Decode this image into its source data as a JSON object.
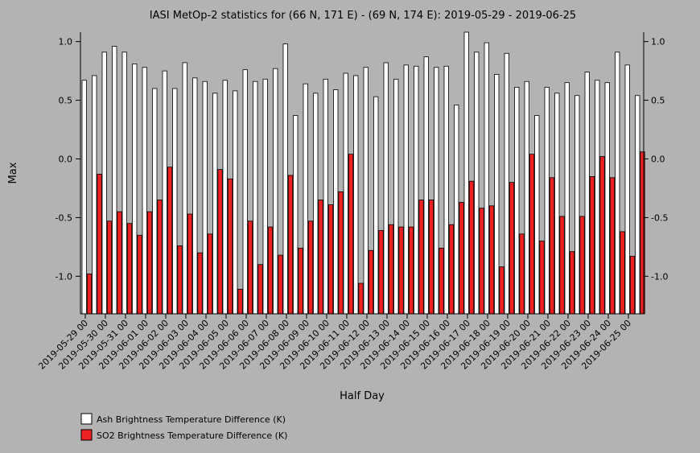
{
  "chart_data": {
    "type": "bar",
    "title": "IASI MetOp-2 statistics for (66 N, 171 E) - (69 N, 174 E): 2019-05-29 - 2019-06-25",
    "xlabel": "Half Day",
    "ylabel": "Max",
    "ylim": [
      -1.32,
      1.08
    ],
    "yticks": [
      1.0,
      0.5,
      0.0,
      -0.5,
      -1.0
    ],
    "ytick_labels": [
      "1.0",
      "0.5",
      "0.0",
      "-0.5",
      "-1.0"
    ],
    "xtick_labels": [
      "2019-05-29 00",
      "2019-05-30 00",
      "2019-05-31 00",
      "2019-06-01 00",
      "2019-06-02 00",
      "2019-06-03 00",
      "2019-06-04 00",
      "2019-06-05 00",
      "2019-06-06 00",
      "2019-06-07 00",
      "2019-06-08 00",
      "2019-06-09 00",
      "2019-06-10 00",
      "2019-06-11 00",
      "2019-06-12 00",
      "2019-06-13 00",
      "2019-06-14 00",
      "2019-06-15 00",
      "2019-06-16 00",
      "2019-06-17 00",
      "2019-06-18 00",
      "2019-06-19 00",
      "2019-06-20 00",
      "2019-06-21 00",
      "2019-06-22 00",
      "2019-06-23 00",
      "2019-06-24 00",
      "2019-06-25 00"
    ],
    "grid": false,
    "legend_position": "bottom-left",
    "series": [
      {
        "name": "Ash Brightness Temperature Difference (K)",
        "color": "#ffffff",
        "values": [
          0.67,
          0.71,
          0.91,
          0.96,
          0.91,
          0.81,
          0.78,
          0.6,
          0.75,
          0.6,
          0.82,
          0.69,
          0.66,
          0.56,
          0.67,
          0.58,
          0.76,
          0.66,
          0.68,
          0.77,
          0.98,
          0.37,
          0.64,
          0.56,
          0.68,
          0.59,
          0.73,
          0.71,
          0.78,
          0.53,
          0.82,
          0.68,
          0.8,
          0.79,
          0.87,
          0.78,
          0.79,
          0.46,
          1.08,
          0.91,
          0.99,
          0.72,
          0.9,
          0.61,
          0.66,
          0.37,
          0.61,
          0.56,
          0.65,
          0.54,
          0.74,
          0.67,
          0.65,
          0.91,
          0.8,
          0.54
        ]
      },
      {
        "name": "SO2 Brightness Temperature Difference (K)",
        "color": "#ee2222",
        "values": [
          -0.98,
          -0.13,
          -0.53,
          -0.45,
          -0.55,
          -0.65,
          -0.45,
          -0.35,
          -0.07,
          -0.74,
          -0.47,
          -0.8,
          -0.64,
          -0.09,
          -0.17,
          -1.11,
          -0.53,
          -0.9,
          -0.58,
          -0.82,
          -0.14,
          -0.76,
          -0.53,
          -0.35,
          -0.39,
          -0.28,
          0.04,
          -1.06,
          -0.78,
          -0.61,
          -0.56,
          -0.58,
          -0.58,
          -0.35,
          -0.35,
          -0.76,
          -0.56,
          -0.37,
          -0.19,
          -0.42,
          -0.4,
          -0.92,
          -0.2,
          -0.64,
          0.04,
          -0.7,
          -0.16,
          -0.49,
          -0.79,
          -0.49,
          -0.15,
          0.02,
          -0.16,
          -0.62,
          -0.83,
          0.06
        ]
      }
    ]
  }
}
